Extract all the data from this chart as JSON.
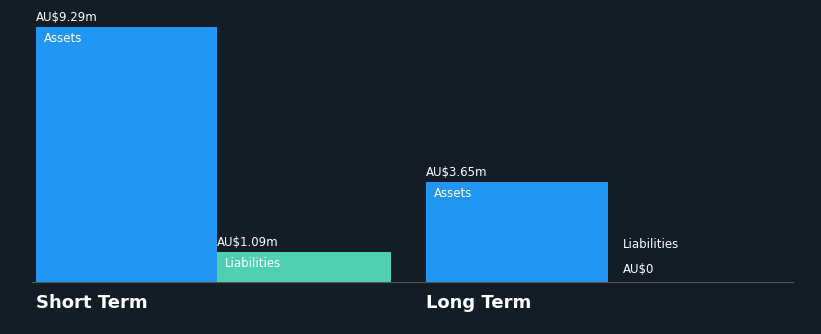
{
  "background_color": "#141C26",
  "short_term": {
    "assets_value": 9.29,
    "liabilities_value": 1.09,
    "assets_label": "AU$9.29m",
    "liabilities_label": "AU$1.09m",
    "assets_color": "#2196F3",
    "liabilities_color": "#4ECFB0",
    "assets_text": "Assets",
    "liabilities_text": "Liabilities",
    "section_label": "Short Term"
  },
  "long_term": {
    "assets_value": 3.65,
    "liabilities_value": 0,
    "assets_label": "AU$3.65m",
    "liabilities_label": "AU$0",
    "assets_color": "#2196F3",
    "liabilities_text": "Liabilities",
    "assets_text": "Assets",
    "section_label": "Long Term"
  },
  "text_color": "#FFFFFF",
  "line_color": "#555555",
  "max_value": 9.29,
  "font_size_label": 8.5,
  "font_size_section": 13,
  "font_size_bar_text": 8.5
}
